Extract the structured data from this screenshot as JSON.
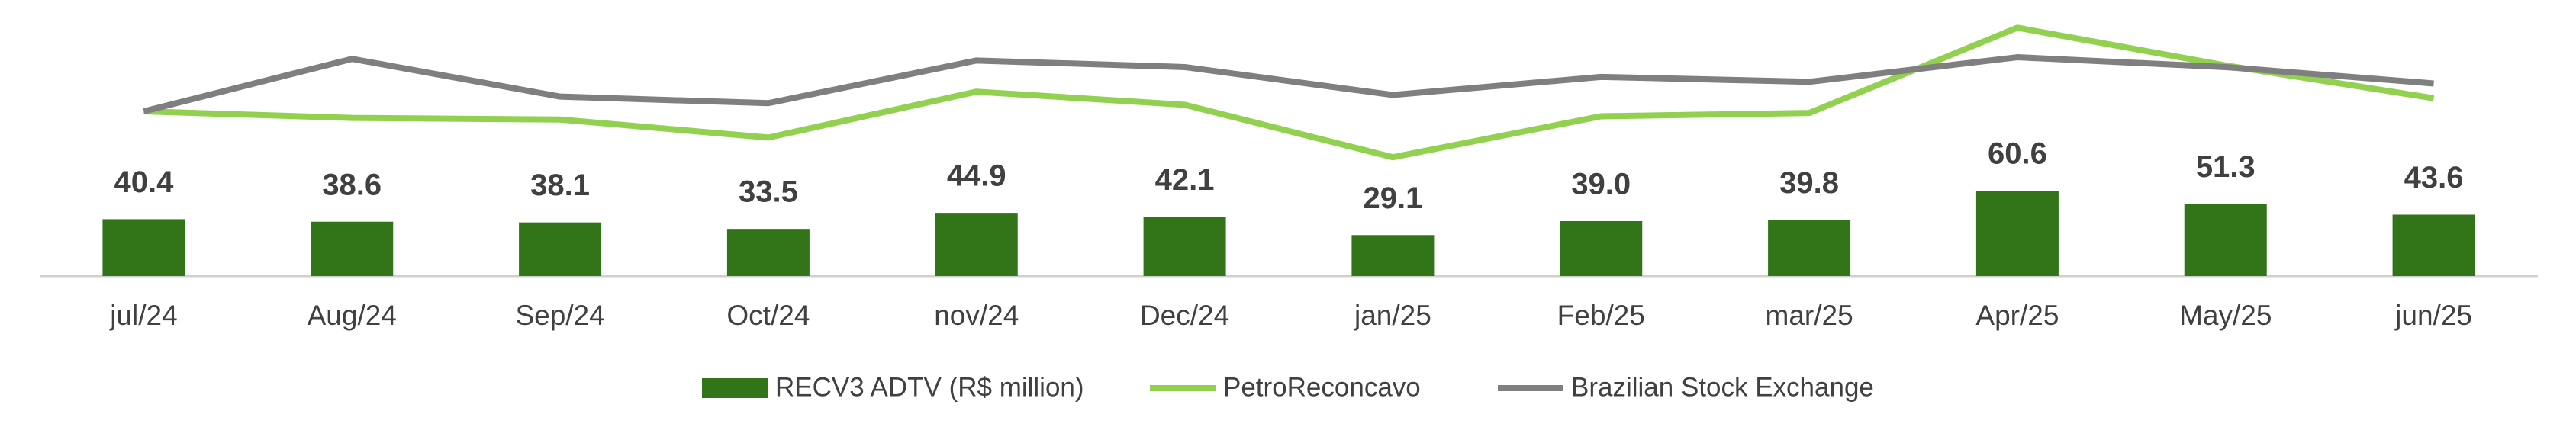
{
  "chart_data": {
    "type": "bar",
    "categories": [
      "jul/24",
      "Aug/24",
      "Sep/24",
      "Oct/24",
      "nov/24",
      "Dec/24",
      "jan/25",
      "Feb/25",
      "mar/25",
      "Apr/25",
      "May/25",
      "jun/25"
    ],
    "series": [
      {
        "name": "RECV3 ADTV (R$ million)",
        "type": "bar",
        "color": "#317518",
        "values": [
          40.4,
          38.6,
          38.1,
          33.5,
          44.9,
          42.1,
          29.1,
          39.0,
          39.8,
          60.6,
          51.3,
          43.6
        ],
        "value_labels": [
          "40.4",
          "38.6",
          "38.1",
          "33.5",
          "44.9",
          "42.1",
          "29.1",
          "39.0",
          "39.8",
          "60.6",
          "51.3",
          "43.6"
        ]
      },
      {
        "name": "PetroReconcavo",
        "type": "line",
        "axis": "y2",
        "color": "#92d050",
        "values": [
          100,
          98,
          97.5,
          92,
          106,
          102,
          86,
          98.5,
          99.5,
          125.5,
          114,
          104
        ]
      },
      {
        "name": "Brazilian Stock Exchange",
        "type": "line",
        "axis": "y2",
        "color": "#7f7f7f",
        "values": [
          100,
          116,
          104.5,
          102.5,
          115.5,
          113.5,
          105,
          110.5,
          109,
          116.5,
          113.5,
          108.5
        ]
      }
    ],
    "ylim": [
      0,
      195
    ],
    "y2lim": [
      80,
      130
    ]
  }
}
